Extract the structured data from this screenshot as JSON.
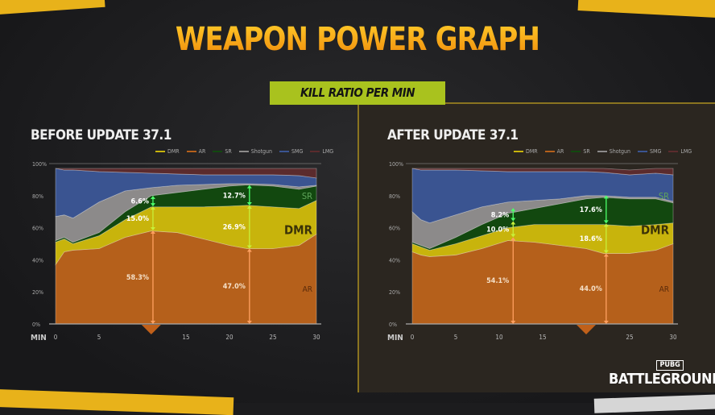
{
  "header": {
    "title": "WEAPON POWER GRAPH",
    "subtitle": "KILL RATIO PER MIN"
  },
  "logo": {
    "top": "PUBG",
    "bottom": "BATTLEGROUNDS"
  },
  "colors": {
    "DMR": "#c8b40c",
    "AR": "#b5601b",
    "SR": "#12480f",
    "Shotgun": "#8c8a8a",
    "SMG": "#3a5491",
    "LMG": "#5b2b2d"
  },
  "legend": [
    "DMR",
    "AR",
    "SR",
    "Shotgun",
    "SMG",
    "LMG"
  ],
  "chart_data": [
    {
      "type": "area",
      "stacked": true,
      "title": "BEFORE UPDATE 37.1",
      "xlabel": "MIN",
      "xlim": [
        0,
        30
      ],
      "ylim": [
        0,
        100
      ],
      "xticks": [
        "0",
        "5",
        "",
        "15",
        "20",
        "25",
        "30"
      ],
      "yticks": [
        "0%",
        "20%",
        "40%",
        "60%",
        "80%",
        "100%"
      ],
      "x": [
        0,
        1,
        2,
        5,
        8,
        11,
        14,
        17,
        20,
        22,
        25,
        28,
        30
      ],
      "series": [
        {
          "name": "AR",
          "values": [
            37,
            45,
            46,
            47,
            54,
            58,
            57,
            53,
            49,
            47,
            47,
            49,
            56
          ]
        },
        {
          "name": "DMR",
          "values": [
            14,
            8,
            4,
            8,
            11,
            15,
            16,
            20,
            24.5,
            27,
            26,
            23,
            21
          ]
        },
        {
          "name": "SR",
          "values": [
            1,
            1,
            1,
            2,
            5,
            7,
            9,
            11,
            12.5,
            12.7,
            13,
            12,
            9
          ]
        },
        {
          "name": "Shotgun",
          "values": [
            15,
            14,
            15,
            19,
            13,
            5,
            4.5,
            3,
            1.5,
            0.8,
            1,
            1.5,
            0.5
          ]
        },
        {
          "name": "SMG",
          "values": [
            30,
            28,
            30,
            19,
            11.5,
            9,
            7,
            6,
            5.5,
            5.5,
            6,
            7,
            4.5
          ]
        },
        {
          "name": "LMG",
          "values": [
            0,
            1,
            1,
            2,
            2.5,
            3,
            3.5,
            4,
            4,
            4,
            4,
            4.5,
            6
          ]
        }
      ],
      "area_labels": {
        "SR": "SR",
        "DMR": "DMR",
        "AR": "AR"
      },
      "annotations": [
        {
          "x": 11.2,
          "AR": "58.3%",
          "DMR": "15.0%",
          "SR": "6.6%",
          "ar": 58.3,
          "dmr": 15.0,
          "sr": 6.6
        },
        {
          "x": 22.3,
          "AR": "47.0%",
          "DMR": "26.9%",
          "SR": "12.7%",
          "ar": 47.0,
          "dmr": 26.9,
          "sr": 12.7
        }
      ],
      "marker_x": 11
    },
    {
      "type": "area",
      "stacked": true,
      "title": "AFTER UPDATE 37.1",
      "xlabel": "MIN",
      "xlim": [
        0,
        30
      ],
      "ylim": [
        0,
        100
      ],
      "xticks": [
        "0",
        "5",
        "10",
        "15",
        "",
        "25",
        "30"
      ],
      "yticks": [
        "0%",
        "20%",
        "40%",
        "60%",
        "80%",
        "100%"
      ],
      "x": [
        0,
        1,
        2,
        5,
        8,
        11,
        14,
        17,
        20,
        22,
        25,
        28,
        30
      ],
      "series": [
        {
          "name": "AR",
          "values": [
            45,
            43,
            42,
            43,
            47,
            52,
            51,
            49,
            47,
            44,
            44,
            46,
            50
          ]
        },
        {
          "name": "DMR",
          "values": [
            5,
            5,
            4,
            7,
            8,
            8,
            11,
            13,
            15,
            18,
            17,
            16,
            13
          ]
        },
        {
          "name": "SR",
          "values": [
            1,
            1,
            1,
            4,
            7,
            9,
            10,
            13,
            16,
            17,
            17,
            16,
            12.5
          ]
        },
        {
          "name": "Shotgun",
          "values": [
            19,
            16,
            16,
            14,
            11,
            7,
            5,
            3,
            2,
            1,
            1,
            1,
            1
          ]
        },
        {
          "name": "SMG",
          "values": [
            27,
            31,
            33,
            28,
            22.5,
            19,
            18,
            17,
            15,
            14.5,
            14,
            15,
            16.5
          ]
        },
        {
          "name": "LMG",
          "values": [
            0,
            1,
            1,
            1,
            1.5,
            2,
            2,
            2,
            2,
            2.5,
            3,
            3,
            4
          ]
        }
      ],
      "area_labels": {
        "SR": "SR",
        "DMR": "DMR",
        "AR": "AR"
      },
      "annotations": [
        {
          "x": 11.6,
          "AR": "54.1%",
          "DMR": "10.0%",
          "SR": "8.2%",
          "ar": 54.1,
          "dmr": 10.0,
          "sr": 8.2
        },
        {
          "x": 22.3,
          "AR": "44.0%",
          "DMR": "18.6%",
          "SR": "17.6%",
          "ar": 44.0,
          "dmr": 18.6,
          "sr": 17.6
        }
      ],
      "marker_x": 20
    }
  ]
}
